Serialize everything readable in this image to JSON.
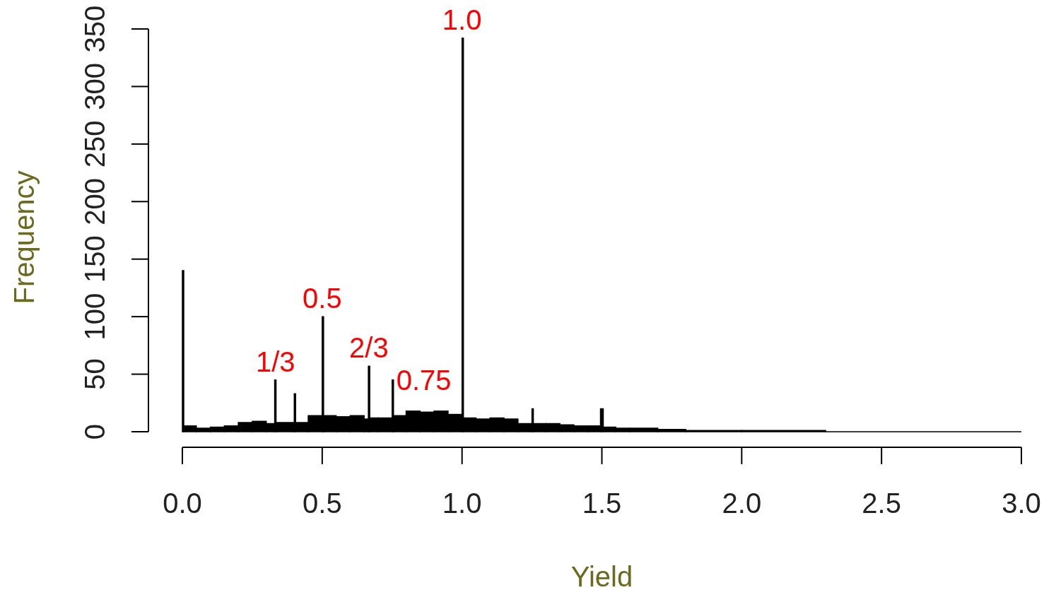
{
  "chart_data": {
    "type": "histogram",
    "xlabel": "Yield",
    "ylabel": "Frequency",
    "color": "#000000",
    "bins": [
      0,
      0.005,
      0.05,
      0.1,
      0.15,
      0.2,
      0.25,
      0.3,
      0.33,
      0.335,
      0.4,
      0.405,
      0.45,
      0.5,
      0.505,
      0.55,
      0.6,
      0.65,
      0.665,
      0.67,
      0.7,
      0.75,
      0.755,
      0.8,
      0.85,
      0.9,
      0.95,
      1.0,
      1.005,
      1.05,
      1.1,
      1.15,
      1.2,
      1.25,
      1.255,
      1.3,
      1.35,
      1.4,
      1.45,
      1.495,
      1.505,
      1.55,
      1.6,
      1.7,
      1.8,
      2.0,
      2.3,
      3.0
    ],
    "values": [
      140,
      5,
      3,
      4,
      5,
      8,
      9,
      7,
      45,
      8,
      33,
      8,
      14,
      100,
      14,
      13,
      14,
      11,
      57,
      12,
      12,
      45,
      14,
      18,
      17,
      18,
      15,
      342,
      12,
      11,
      12,
      11,
      7,
      20,
      7,
      7,
      6,
      5,
      5,
      20,
      4,
      3,
      3,
      2,
      1,
      1,
      0
    ],
    "xlim": [
      0,
      3
    ],
    "xticks": [
      {
        "value": 0,
        "label": "0.0"
      },
      0.5,
      {
        "value": 1,
        "label": "1.0"
      },
      1.5,
      {
        "value": 2,
        "label": "2.0"
      },
      2.5,
      {
        "value": 3,
        "label": "3.0"
      }
    ],
    "ylim": [
      0,
      350
    ],
    "yticks": [
      0,
      50,
      100,
      150,
      200,
      250,
      300,
      350
    ],
    "annotations": [
      {
        "text": "1.0",
        "x": 1.0,
        "y": 342
      },
      {
        "text": "0.5",
        "x": 0.5,
        "y": 100
      },
      {
        "text": "1/3",
        "x": 0.333,
        "y": 45
      },
      {
        "text": "2/3",
        "x": 0.667,
        "y": 57
      },
      {
        "text": "0.75",
        "x": 0.75,
        "y": 45
      }
    ]
  }
}
